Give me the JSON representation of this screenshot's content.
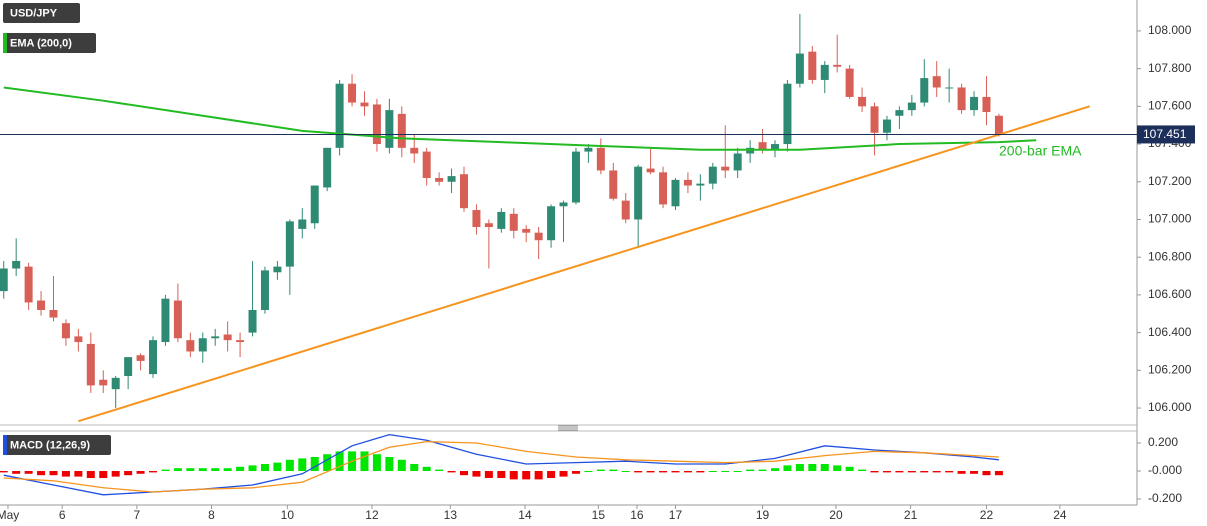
{
  "chart_data": [
    {
      "type": "candlestick",
      "title": "USD/JPY",
      "open": [
        106.62,
        106.74,
        106.75,
        106.57,
        106.52,
        106.45,
        106.38,
        106.34,
        106.15,
        106.1,
        106.17,
        106.28,
        106.18,
        106.35,
        106.57,
        106.36,
        106.3,
        106.37,
        106.39,
        106.36,
        106.4,
        106.52,
        106.72,
        106.75,
        106.95,
        106.98,
        107.17,
        107.38,
        107.72,
        107.62,
        107.61,
        107.38,
        107.56,
        107.38,
        107.36,
        107.22,
        107.2,
        107.24,
        107.05,
        106.98,
        106.95,
        107.03,
        106.95,
        106.93,
        106.89,
        107.07,
        107.09,
        107.36,
        107.38,
        107.26,
        107.1,
        107.0,
        107.27,
        107.25,
        107.07,
        107.21,
        107.18,
        107.19,
        107.28,
        107.26,
        107.35,
        107.41,
        107.37,
        107.4,
        107.72,
        107.89,
        107.74,
        107.82,
        107.8,
        107.65,
        107.6,
        107.46,
        107.55,
        107.58,
        107.62,
        107.76,
        107.7,
        107.7,
        107.58,
        107.65,
        107.55
      ],
      "high": [
        106.78,
        106.9,
        106.77,
        106.62,
        106.7,
        106.47,
        106.42,
        106.4,
        106.2,
        106.17,
        106.27,
        106.29,
        106.38,
        106.6,
        106.66,
        106.4,
        106.4,
        106.42,
        106.46,
        106.4,
        106.78,
        106.75,
        106.78,
        107.0,
        107.06,
        107.18,
        107.38,
        107.74,
        107.77,
        107.68,
        107.64,
        107.64,
        107.6,
        107.45,
        107.38,
        107.25,
        107.27,
        107.28,
        107.08,
        107.0,
        107.06,
        107.06,
        106.97,
        106.96,
        107.08,
        107.1,
        107.38,
        107.4,
        107.43,
        107.3,
        107.14,
        107.29,
        107.38,
        107.28,
        107.22,
        107.25,
        107.24,
        107.3,
        107.5,
        107.38,
        107.42,
        107.48,
        107.42,
        107.74,
        108.09,
        107.92,
        107.84,
        107.98,
        107.82,
        107.7,
        107.62,
        107.55,
        107.6,
        107.66,
        107.85,
        107.84,
        107.8,
        107.72,
        107.68,
        107.76,
        107.56
      ],
      "low": [
        106.58,
        106.7,
        106.52,
        106.49,
        106.46,
        106.33,
        106.3,
        106.08,
        106.08,
        106.0,
        106.1,
        106.2,
        106.16,
        106.33,
        106.35,
        106.27,
        106.24,
        106.33,
        106.3,
        106.27,
        106.38,
        106.5,
        106.68,
        106.6,
        106.9,
        106.95,
        107.15,
        107.34,
        107.6,
        107.55,
        107.36,
        107.35,
        107.33,
        107.3,
        107.18,
        107.18,
        107.14,
        107.04,
        106.92,
        106.74,
        106.93,
        106.9,
        106.88,
        106.79,
        106.85,
        106.88,
        107.08,
        107.3,
        107.24,
        107.1,
        106.98,
        106.85,
        107.24,
        107.06,
        107.05,
        107.14,
        107.1,
        107.16,
        107.22,
        107.22,
        107.3,
        107.35,
        107.33,
        107.36,
        107.7,
        107.72,
        107.67,
        107.78,
        107.64,
        107.57,
        107.34,
        107.42,
        107.48,
        107.55,
        107.6,
        107.65,
        107.62,
        107.56,
        107.55,
        107.5,
        107.44
      ],
      "close": [
        106.74,
        106.78,
        106.56,
        106.52,
        106.48,
        106.37,
        106.35,
        106.12,
        106.12,
        106.16,
        106.27,
        106.25,
        106.36,
        106.58,
        106.37,
        106.3,
        106.37,
        106.38,
        106.36,
        106.35,
        106.52,
        106.73,
        106.75,
        106.99,
        107.0,
        107.18,
        107.38,
        107.72,
        107.62,
        107.6,
        107.4,
        107.58,
        107.38,
        107.35,
        107.22,
        107.2,
        107.23,
        107.06,
        106.96,
        106.96,
        107.04,
        106.94,
        106.93,
        106.89,
        107.07,
        107.09,
        107.36,
        107.38,
        107.26,
        107.11,
        107.0,
        107.28,
        107.25,
        107.08,
        107.21,
        107.18,
        107.19,
        107.28,
        107.26,
        107.35,
        107.38,
        107.37,
        107.4,
        107.72,
        107.88,
        107.74,
        107.82,
        107.81,
        107.65,
        107.6,
        107.46,
        107.53,
        107.58,
        107.62,
        107.75,
        107.7,
        107.7,
        107.58,
        107.65,
        107.57,
        107.45
      ],
      "up_color": "#2f8a74",
      "down_color": "#d75f55",
      "xlim": [
        -0.3,
        91.1
      ],
      "ylim": [
        105.91,
        108.164
      ],
      "yticks": [
        {
          "value": 106,
          "label": "106.000"
        },
        {
          "value": 106.2,
          "label": "106.200"
        },
        {
          "value": 106.4,
          "label": "106.400"
        },
        {
          "value": 106.6,
          "label": "106.600"
        },
        {
          "value": 106.8,
          "label": "106.800"
        },
        {
          "value": 107,
          "label": "107.000"
        },
        {
          "value": 107.2,
          "label": "107.200"
        },
        {
          "value": 107.4,
          "label": "107.400"
        },
        {
          "value": 107.6,
          "label": "107.600"
        },
        {
          "value": 107.8,
          "label": "107.800"
        },
        {
          "value": 108,
          "label": "108.000"
        }
      ],
      "last_price": 107.451,
      "series": [
        {
          "name": "EMA (200,0)",
          "color": "#22bb22",
          "x": [
            0,
            8,
            16,
            24,
            32,
            40,
            48,
            56,
            64,
            72,
            80,
            83
          ],
          "values": [
            107.7,
            107.63,
            107.55,
            107.47,
            107.43,
            107.41,
            107.39,
            107.37,
            107.37,
            107.4,
            107.41,
            107.42
          ]
        },
        {
          "color": "#f7941d",
          "x": [
            6.0,
            87.3
          ],
          "values": [
            105.93,
            107.6
          ]
        }
      ],
      "annotation": "200-bar EMA"
    },
    {
      "type": "macd",
      "title": "MACD (12,26,9)",
      "xlim": [
        -0.3,
        91.1
      ],
      "ylim": [
        -0.243,
        0.293
      ],
      "yticks": [
        {
          "value": 0.2,
          "label": "0.200"
        },
        {
          "value": 0,
          "label": "-0.000"
        },
        {
          "value": -0.2,
          "label": "-0.200"
        }
      ],
      "xticks": [
        {
          "value": 0.34,
          "label": "May"
        },
        {
          "value": 4.7,
          "label": "6"
        },
        {
          "value": 10.7,
          "label": "7"
        },
        {
          "value": 16.7,
          "label": "8"
        },
        {
          "value": 22.8,
          "label": "10"
        },
        {
          "value": 29.6,
          "label": "12"
        },
        {
          "value": 35.9,
          "label": "13"
        },
        {
          "value": 41.9,
          "label": "14"
        },
        {
          "value": 47.8,
          "label": "15"
        },
        {
          "value": 50.9,
          "label": "16"
        },
        {
          "value": 54,
          "label": "17"
        },
        {
          "value": 61,
          "label": "19"
        },
        {
          "value": 66.9,
          "label": "20"
        },
        {
          "value": 72.9,
          "label": "21"
        },
        {
          "value": 79,
          "label": "22"
        },
        {
          "value": 84.9,
          "label": "24"
        }
      ],
      "histogram": {
        "up_color": "#00e600",
        "down_color": "#ee0000",
        "values": [
          -0.01,
          -0.02,
          -0.02,
          -0.03,
          -0.03,
          -0.04,
          -0.04,
          -0.05,
          -0.05,
          -0.04,
          -0.03,
          -0.02,
          -0.01,
          0.01,
          0.02,
          0.02,
          0.02,
          0.02,
          0.02,
          0.03,
          0.04,
          0.05,
          0.06,
          0.08,
          0.09,
          0.1,
          0.12,
          0.14,
          0.14,
          0.14,
          0.12,
          0.1,
          0.08,
          0.05,
          0.03,
          0.01,
          -0.01,
          -0.03,
          -0.04,
          -0.05,
          -0.05,
          -0.06,
          -0.06,
          -0.06,
          -0.05,
          -0.04,
          -0.02,
          0.0,
          0.01,
          0.01,
          0.0,
          -0.01,
          -0.01,
          -0.01,
          -0.01,
          -0.01,
          -0.01,
          0.0,
          0.0,
          0.0,
          0.01,
          0.01,
          0.02,
          0.04,
          0.05,
          0.05,
          0.05,
          0.04,
          0.03,
          0.01,
          -0.01,
          -0.01,
          -0.01,
          -0.01,
          -0.01,
          -0.01,
          -0.01,
          -0.02,
          -0.02,
          -0.03,
          -0.03
        ]
      },
      "series": [
        {
          "color": "#1f4fe0",
          "x": [
            0,
            4,
            8,
            12,
            16,
            20,
            24,
            28,
            31,
            34,
            38,
            42,
            46,
            50,
            54,
            58,
            62,
            66,
            70,
            74,
            78,
            80
          ],
          "values": [
            -0.03,
            -0.1,
            -0.17,
            -0.15,
            -0.13,
            -0.1,
            -0.02,
            0.18,
            0.26,
            0.22,
            0.12,
            0.05,
            0.06,
            0.07,
            0.05,
            0.05,
            0.09,
            0.18,
            0.15,
            0.13,
            0.1,
            0.08
          ]
        },
        {
          "color": "#f7941d",
          "x": [
            0,
            4,
            8,
            12,
            16,
            20,
            24,
            28,
            31,
            34,
            38,
            42,
            46,
            50,
            54,
            58,
            62,
            66,
            70,
            74,
            78,
            80
          ],
          "values": [
            -0.05,
            -0.07,
            -0.12,
            -0.15,
            -0.13,
            -0.12,
            -0.08,
            0.07,
            0.17,
            0.21,
            0.2,
            0.14,
            0.1,
            0.08,
            0.07,
            0.06,
            0.07,
            0.11,
            0.14,
            0.13,
            0.11,
            0.1
          ]
        }
      ]
    }
  ]
}
